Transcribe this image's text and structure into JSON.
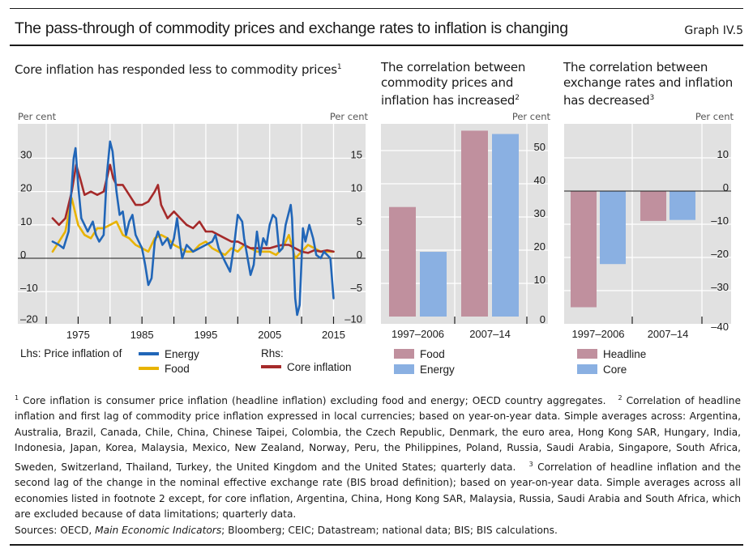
{
  "header": {
    "title": "The pass-through of commodity prices and exchange rates to inflation is changing",
    "graph_id": "Graph IV.5"
  },
  "panels": {
    "left_title": "Core inflation has responded less to commodity prices",
    "left_title_sup": "1",
    "mid_title": "The correlation between commodity prices and inflation has increased",
    "mid_title_sup": "2",
    "right_title": "The correlation between exchange rates and inflation has decreased",
    "right_title_sup": "3"
  },
  "chart_data": [
    {
      "type": "line",
      "title": "Core inflation has responded less to commodity prices",
      "ylabel_left": "Per cent",
      "ylabel_right": "Per cent",
      "xlim": [
        1966.5,
        2020
      ],
      "ylim_left": [
        -20,
        35
      ],
      "ylim_right": [
        -10,
        17.5
      ],
      "yticks_left": [
        -20,
        -10,
        0,
        10,
        20,
        30
      ],
      "yticks_left_labels": [
        "–20",
        "–10",
        "0",
        "10",
        "20",
        "30"
      ],
      "yticks_right": [
        -10,
        -5,
        0,
        5,
        10,
        15
      ],
      "yticks_right_labels": [
        "–10",
        "–5",
        "0",
        "5",
        "10",
        "15"
      ],
      "xticks": [
        1970,
        1975,
        1980,
        1985,
        1990,
        1995,
        2000,
        2005,
        2010,
        2015
      ],
      "xtick_labels": [
        {
          "x": 1975,
          "label": "1975"
        },
        {
          "x": 1985,
          "label": "1985"
        },
        {
          "x": 1995,
          "label": "1995"
        },
        {
          "x": 2005,
          "label": "2005"
        },
        {
          "x": 2015,
          "label": "2015"
        }
      ],
      "grid": true,
      "legend": {
        "lhs_label": "Lhs: Price inflation of",
        "rhs_label": "Rhs:",
        "placement": "bottom"
      },
      "series": [
        {
          "name": "Energy",
          "axis": "left",
          "color": "#2166b8",
          "x": [
            1971,
            1972,
            1972.7,
            1973.5,
            1974.3,
            1974.6,
            1975,
            1975.5,
            1976,
            1976.5,
            1977.3,
            1977.8,
            1978.3,
            1979,
            1979.5,
            1980,
            1980.4,
            1981,
            1981.5,
            1982,
            1982.5,
            1983,
            1983.5,
            1984,
            1984.5,
            1985,
            1985.5,
            1986,
            1986.5,
            1987,
            1987.5,
            1988.2,
            1989,
            1989.5,
            1990,
            1990.5,
            1991,
            1991.3,
            1992,
            1993,
            1994,
            1995,
            1996,
            1996.5,
            1997,
            1998,
            1998.8,
            1999.5,
            2000,
            2000.7,
            2001,
            2002,
            2002.5,
            2003,
            2003.5,
            2004,
            2004.5,
            2005,
            2005.5,
            2006,
            2006.5,
            2007,
            2007.5,
            2008.3,
            2008.5,
            2009,
            2009.3,
            2009.7,
            2010.2,
            2010.6,
            2011.2,
            2011.8,
            2012.3,
            2013,
            2013.5,
            2014,
            2014.5,
            2015
          ],
          "values": [
            5,
            4,
            3,
            8,
            30,
            33,
            22,
            12,
            10,
            8,
            11,
            7,
            5,
            7,
            25,
            35,
            32,
            20,
            13,
            14,
            7,
            11,
            13,
            7,
            5,
            3,
            -2,
            -8,
            -6,
            5,
            8,
            4,
            6,
            3,
            6,
            12,
            4,
            0,
            4,
            2,
            3,
            4,
            5,
            7,
            3,
            -1,
            -4,
            5,
            13,
            11,
            6,
            -5,
            -2,
            8,
            1,
            6,
            4,
            10,
            13,
            12,
            2,
            3,
            10,
            16,
            12,
            -12,
            -17,
            -14,
            9,
            5,
            10,
            6,
            1,
            0,
            2,
            1,
            0,
            -12
          ]
        },
        {
          "name": "Food",
          "axis": "left",
          "color": "#e8b300",
          "x": [
            1971,
            1972,
            1973,
            1974,
            1975,
            1976,
            1977,
            1978,
            1979,
            1980,
            1981,
            1982,
            1983,
            1984,
            1985,
            1986,
            1987,
            1988,
            1989,
            1990,
            1991,
            1992,
            1993,
            1994,
            1995,
            1996,
            1997,
            1998,
            1999,
            2000,
            2001,
            2002,
            2003,
            2004,
            2005,
            2006,
            2007,
            2008,
            2009,
            2010,
            2011,
            2012,
            2013,
            2014,
            2015
          ],
          "values": [
            2,
            5,
            8,
            18,
            10,
            7,
            6,
            9,
            9,
            10,
            11,
            7,
            6,
            4,
            3,
            2,
            6,
            7,
            6,
            4,
            3,
            2,
            2,
            4,
            5,
            3,
            2,
            1,
            3,
            2,
            4,
            3,
            2,
            2,
            2,
            1,
            3,
            7,
            0,
            2,
            4,
            3,
            2,
            2,
            2
          ]
        },
        {
          "name": "Core inflation",
          "axis": "right",
          "color": "#a52a2a",
          "x": [
            1971,
            1972,
            1973,
            1974,
            1974.7,
            1975.3,
            1976,
            1977,
            1978,
            1979,
            1980,
            1980.5,
            1981,
            1982,
            1983,
            1984,
            1985,
            1986,
            1987,
            1987.5,
            1988,
            1989,
            1990,
            1991,
            1992,
            1993,
            1994,
            1995,
            1996,
            1997,
            1998,
            1999,
            2000,
            2001,
            2002,
            2003,
            2004,
            2005,
            2006,
            2007,
            2008,
            2009,
            2010,
            2011,
            2012,
            2013,
            2014,
            2015
          ],
          "values": [
            6,
            5,
            6,
            10,
            14,
            12,
            9.5,
            10,
            9.5,
            10,
            14,
            12,
            11,
            11,
            9.5,
            8,
            8,
            8.5,
            10,
            11,
            8,
            6,
            7,
            6,
            5,
            4.5,
            5.5,
            4,
            4,
            3.5,
            3,
            2.5,
            2.5,
            2,
            1.5,
            1.5,
            1.5,
            1.5,
            1.8,
            2,
            2,
            1.5,
            1,
            0.8,
            1.2,
            1,
            1.2,
            1
          ]
        }
      ]
    },
    {
      "type": "bar",
      "title": "The correlation between commodity prices and inflation has increased",
      "ylabel": "Per cent",
      "categories": [
        "1997–2006",
        "2007–14"
      ],
      "ylim": [
        0,
        58
      ],
      "yticks": [
        0,
        10,
        20,
        30,
        40,
        50
      ],
      "ytick_labels": [
        "0",
        "10",
        "20",
        "30",
        "40",
        "50"
      ],
      "grid": true,
      "legend": "bottom",
      "series": [
        {
          "name": "Food",
          "color": "#c0909e",
          "values": [
            33,
            56
          ]
        },
        {
          "name": "Energy",
          "color": "#8ab0e2",
          "values": [
            19.5,
            55
          ]
        }
      ]
    },
    {
      "type": "bar",
      "title": "The correlation between exchange rates and inflation has decreased",
      "ylabel": "Per cent",
      "categories": [
        "1997–2006",
        "2007–14"
      ],
      "ylim": [
        -40,
        20
      ],
      "yticks": [
        -40,
        -30,
        -20,
        -10,
        0,
        10
      ],
      "ytick_labels": [
        "–40",
        "–30",
        "–20",
        "–10",
        "0",
        "10"
      ],
      "grid": true,
      "legend": "bottom",
      "series": [
        {
          "name": "Headline",
          "color": "#c0909e",
          "values": [
            -35,
            -9
          ]
        },
        {
          "name": "Core",
          "color": "#8ab0e2",
          "values": [
            -22,
            -8.7
          ]
        }
      ]
    }
  ],
  "footnotes": {
    "fn1_mark": "1",
    "fn1": "Core inflation is consumer price inflation (headline inflation) excluding food and energy; OECD country aggregates.",
    "fn2_mark": "2",
    "fn2": "Correlation of headline inflation and first lag of commodity price inflation expressed in local currencies; based on year-on-year data. Simple averages across: Argentina, Australia, Brazil, Canada, Chile, China, Chinese Taipei, Colombia, the Czech Republic, Denmark, the euro area, Hong Kong SAR, Hungary, India, Indonesia, Japan, Korea, Malaysia, Mexico, New Zealand, Norway, Peru, the Philippines, Poland, Russia, Saudi Arabia, Singapore, South Africa, Sweden, Switzerland, Thailand, Turkey, the United Kingdom and the United States; quarterly data.",
    "fn3_mark": "3",
    "fn3": "Correlation of headline inflation and the second lag of the change in the nominal effective exchange rate (BIS broad definition); based on year-on-year data. Simple averages across all economies listed in footnote 2 except, for core inflation, Argentina, China, Hong Kong SAR, Malaysia, Russia, Saudi Arabia and South Africa, which are excluded because of data limitations; quarterly data."
  },
  "sources": {
    "prefix": "Sources: OECD, ",
    "italic": "Main Economic Indicators",
    "suffix": "; Bloomberg; CEIC; Datastream; national data; BIS; BIS calculations."
  }
}
